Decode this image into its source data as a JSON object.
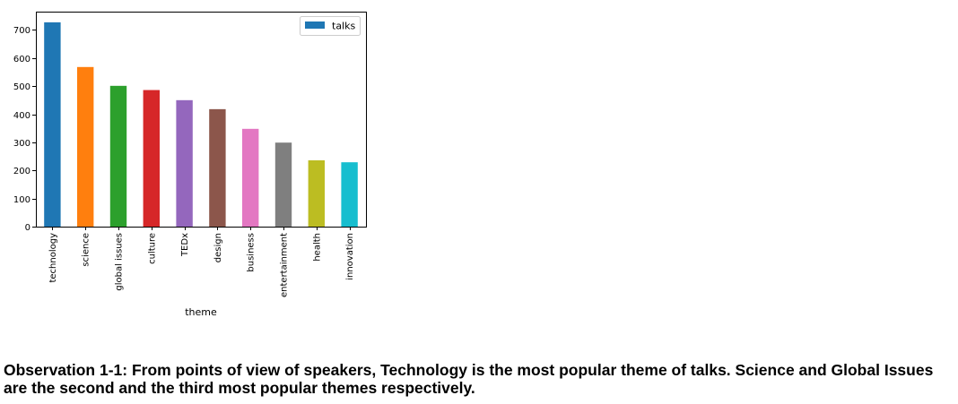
{
  "chart_data": {
    "type": "bar",
    "categories": [
      "technology",
      "science",
      "global issues",
      "culture",
      "TEDx",
      "design",
      "business",
      "entertainment",
      "health",
      "innovation"
    ],
    "series": [
      {
        "name": "talks",
        "values": [
          727,
          568,
          501,
          486,
          450,
          418,
          348,
          299,
          236,
          229
        ]
      }
    ],
    "colors": [
      "#1f77b4",
      "#ff7f0e",
      "#2ca02c",
      "#d62728",
      "#9467bd",
      "#8c564b",
      "#e377c2",
      "#7f7f7f",
      "#bcbd22",
      "#17becf"
    ],
    "legend_swatch_color": "#1f77b4",
    "xlabel": "theme",
    "ylabel": "",
    "ylim": [
      0,
      765
    ],
    "yticks": [
      0,
      100,
      200,
      300,
      400,
      500,
      600,
      700
    ],
    "legend_position": "top-right",
    "grid": false
  },
  "observation": {
    "text": "Observation 1-1: From points of view of speakers, Technology is the most popular theme of talks. Science and Global Issues are the second and the third most popular themes respectively."
  }
}
